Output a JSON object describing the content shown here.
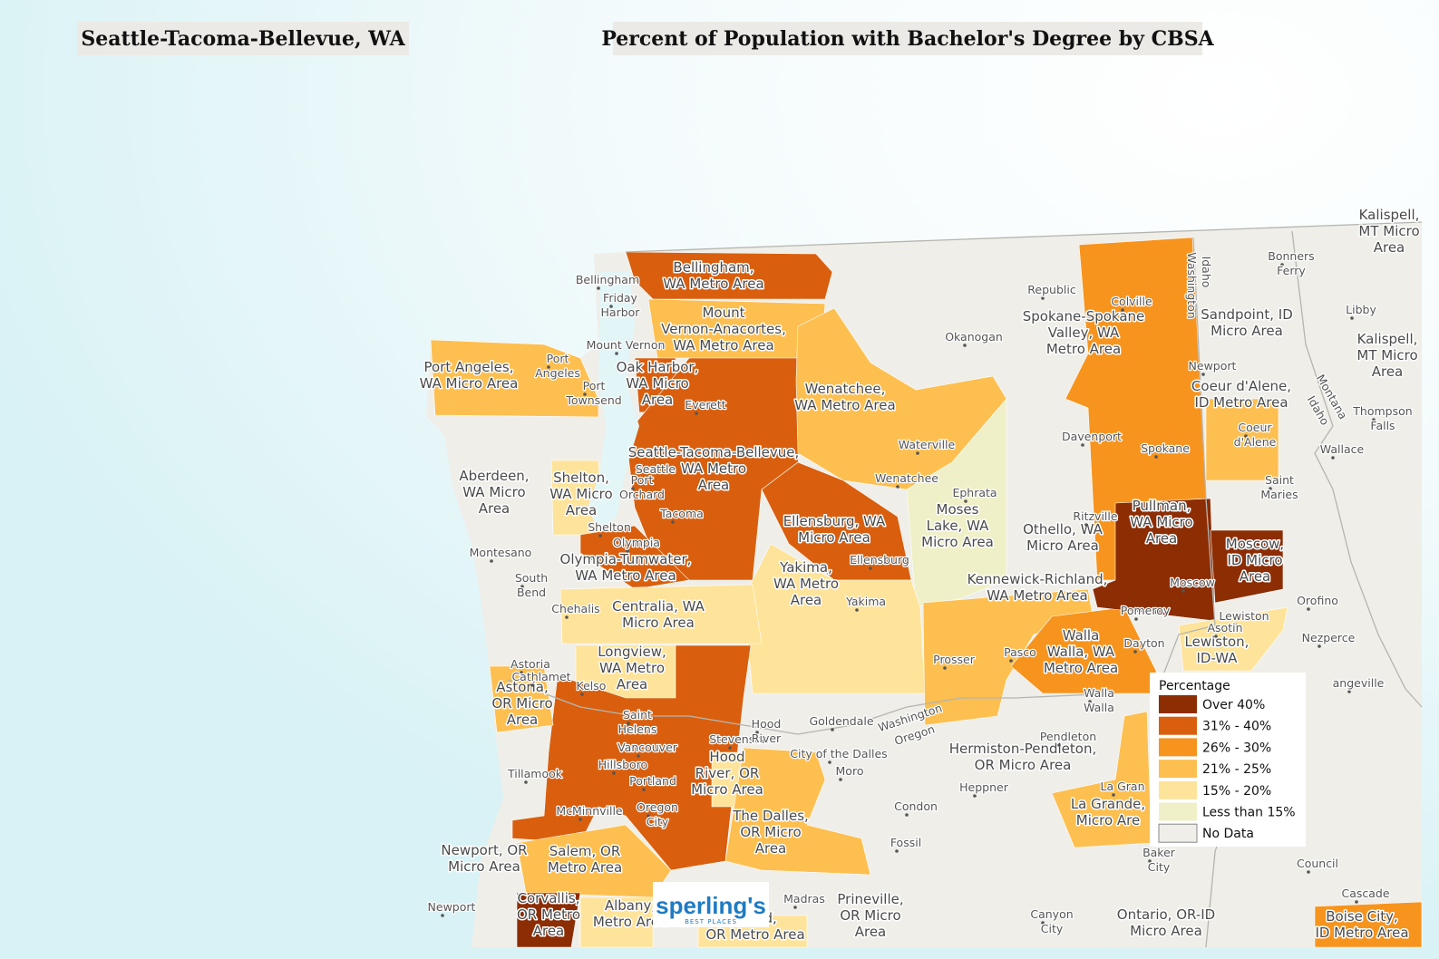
{
  "header": {
    "location": "Seattle-Tacoma-Bellevue, WA",
    "title": "Percent of Population with Bachelor's Degree by CBSA"
  },
  "legend": {
    "title": "Percentage",
    "items": [
      {
        "label": "Over 40%",
        "color": "#8c2d04"
      },
      {
        "label": "31% - 40%",
        "color": "#d95f0e"
      },
      {
        "label": "26% - 30%",
        "color": "#f7941d"
      },
      {
        "label": "21% - 25%",
        "color": "#fdbf4f"
      },
      {
        "label": "15% - 20%",
        "color": "#fee39a"
      },
      {
        "label": "Less than 15%",
        "color": "#eff0c8"
      },
      {
        "label": "No Data",
        "color": "#efeee9"
      }
    ]
  },
  "areas": [
    {
      "lines": [
        "Bellingham,",
        "WA Metro Area"
      ],
      "category": "31% - 40%"
    },
    {
      "lines": [
        "Mount",
        "Vernon-Anacortes,",
        "WA Metro Area"
      ],
      "category": "21% - 25%"
    },
    {
      "lines": [
        "Port Angeles,",
        "WA Micro Area"
      ],
      "category": "21% - 25%"
    },
    {
      "lines": [
        "Oak Harbor,",
        "WA Micro",
        "Area"
      ],
      "category": "31% - 40%"
    },
    {
      "lines": [
        "Seattle-Tacoma-Bellevue,",
        "WA Metro",
        "Area"
      ],
      "category": "31% - 40%"
    },
    {
      "lines": [
        "Wenatchee,",
        "WA Metro Area"
      ],
      "category": "21% - 25%"
    },
    {
      "lines": [
        "Moses",
        "Lake, WA",
        "Micro Area"
      ],
      "category": "Less than 15%"
    },
    {
      "lines": [
        "Ellensburg, WA",
        "Micro Area"
      ],
      "category": "31% - 40%"
    },
    {
      "lines": [
        "Yakima,",
        "WA Metro",
        "Area"
      ],
      "category": "15% - 20%"
    },
    {
      "lines": [
        "Shelton,",
        "WA Micro",
        "Area"
      ],
      "category": "15% - 20%"
    },
    {
      "lines": [
        "Olympia-Tumwater,",
        "WA Metro Area"
      ],
      "category": "31% - 40%"
    },
    {
      "lines": [
        "Centralia, WA",
        "Micro Area"
      ],
      "category": "15% - 20%"
    },
    {
      "lines": [
        "Aberdeen,",
        "WA Micro",
        "Area"
      ],
      "category": "No Data"
    },
    {
      "lines": [
        "Longview,",
        "WA Metro",
        "Area"
      ],
      "category": "15% - 20%"
    },
    {
      "category": "31% - 40%"
    },
    {
      "lines": [
        "Astoria,",
        "OR Micro",
        "Area"
      ],
      "category": "21% - 25%"
    },
    {
      "lines": [
        "Hood",
        "River, OR",
        "Micro Area"
      ],
      "category": "15% - 20%"
    },
    {
      "lines": [
        "The Dalles,",
        "OR Micro",
        "Area"
      ],
      "category": "21% - 25%"
    },
    {
      "lines": [
        "Kennewick-Richland,",
        "WA Metro Area"
      ],
      "category": "21% - 25%"
    },
    {
      "lines": [
        "Walla",
        "Walla, WA",
        "Metro Area"
      ],
      "category": "26% - 30%"
    },
    {
      "lines": [
        "Spokane-Spokane",
        "Valley, WA",
        "Metro Area"
      ],
      "category": "26% - 30%"
    },
    {
      "lines": [
        "Coeur d'Alene,",
        "ID Metro Area"
      ],
      "category": "21% - 25%"
    },
    {
      "lines": [
        "Pullman,",
        "WA Micro",
        "Area"
      ],
      "category": "Over 40%"
    },
    {
      "lines": [
        "Moscow,",
        "ID Micro",
        "Area"
      ],
      "category": "Over 40%"
    },
    {
      "lines": [
        "Lewiston,",
        "ID-WA"
      ],
      "category": "15% - 20%"
    },
    {
      "lines": [
        "Othello, WA",
        "Micro Area"
      ],
      "category": "No Data"
    },
    {
      "lines": [
        "Hermiston-Pendleton,",
        "OR Micro Area"
      ],
      "category": "No Data"
    },
    {
      "lines": [
        "La Grande,",
        "Micro Are"
      ],
      "category": "21% - 25%"
    },
    {
      "lines": [
        "Newport, OR",
        "Micro Area"
      ],
      "category": "No Data"
    },
    {
      "lines": [
        "Salem, OR",
        "Metro Area"
      ],
      "category": "21% - 25%"
    },
    {
      "lines": [
        "Corvallis,",
        "OR Metro",
        "Area"
      ],
      "category": "Over 40%"
    },
    {
      "lines": [
        "Albany,",
        "Metro Area"
      ],
      "category": "15% - 20%"
    },
    {
      "lines": [
        "Prineville,",
        "OR Micro",
        "Area"
      ],
      "category": "No Data"
    },
    {
      "lines": [
        "mond,",
        "OR Metro Area"
      ],
      "category": "15% - 20%"
    },
    {
      "lines": [
        "Ontario, OR-ID",
        "Micro Area"
      ],
      "category": "No Data"
    },
    {
      "lines": [
        "Boise City,",
        "ID Metro Area"
      ],
      "category": "26% - 30%"
    },
    {
      "lines": [
        "Kalispell,",
        "MT Micro",
        "Area"
      ],
      "category": "No Data"
    },
    {
      "lines": [
        "Kalispell,",
        "MT Micro",
        "Area"
      ],
      "category": "No Data"
    },
    {
      "lines": [
        "Sandpoint, ID",
        "Micro Area"
      ],
      "category": "No Data"
    }
  ],
  "places": [
    [
      "Bellingham"
    ],
    [
      "Friday",
      "Harbor"
    ],
    [
      "Mount Vernon"
    ],
    [
      "Port",
      "Angeles"
    ],
    [
      "Port",
      "Townsend"
    ],
    [
      "Everett"
    ],
    [
      "Seattle"
    ],
    [
      "Port",
      "Orchard"
    ],
    [
      "Tacoma"
    ],
    [
      "Shelton"
    ],
    [
      "Olympia"
    ],
    [
      "Montesano"
    ],
    [
      "South",
      "Bend"
    ],
    [
      "Chehalis"
    ],
    [
      "Astoria"
    ],
    [
      "Cathlamet"
    ],
    [
      "Kelso"
    ],
    [
      "Saint",
      "Helens"
    ],
    [
      "Vancouver"
    ],
    [
      "Hillsboro"
    ],
    [
      "Portland"
    ],
    [
      "Tillamook"
    ],
    [
      "McMinnville"
    ],
    [
      "Oregon",
      "City"
    ],
    [
      "Stevenson"
    ],
    [
      "Hood",
      "River"
    ],
    [
      "Goldendale"
    ],
    [
      "City of the Dalles"
    ],
    [
      "Moro"
    ],
    [
      "Yakima"
    ],
    [
      "Ellensburg"
    ],
    [
      "Wenatchee"
    ],
    [
      "Waterville"
    ],
    [
      "Ephrata"
    ],
    [
      "Okanogan"
    ],
    [
      "Republic"
    ],
    [
      "Colville"
    ],
    [
      "Newport"
    ],
    [
      "Spokane"
    ],
    [
      "Davenport"
    ],
    [
      "Ritzville"
    ],
    [
      "Pasco"
    ],
    [
      "Prosser"
    ],
    [
      "Dayton"
    ],
    [
      "Walla",
      "Walla"
    ],
    [
      "Pomeroy"
    ],
    [
      "Moscow"
    ],
    [
      "Lewiston"
    ],
    [
      "Asotin"
    ],
    [
      "Pendleton"
    ],
    [
      "Heppner"
    ],
    [
      "Condon"
    ],
    [
      "Fossil"
    ],
    [
      "La Gran"
    ],
    [
      "Baker",
      "City"
    ],
    [
      "Madras"
    ],
    [
      "Canyon",
      "City"
    ],
    [
      "Newport"
    ],
    [
      "Bonners",
      "Ferry"
    ],
    [
      "Libby"
    ],
    [
      "Coeur",
      "d'Alene"
    ],
    [
      "Saint",
      "Maries"
    ],
    [
      "Wallace"
    ],
    [
      "Thompson",
      "Falls"
    ],
    [
      "Orofino"
    ],
    [
      "Nezperce"
    ],
    [
      "angeville"
    ],
    [
      "Council"
    ],
    [
      "Cascade"
    ]
  ],
  "state_labels": [
    "Washington",
    "Oregon",
    "Idaho",
    "Washington",
    "Idaho",
    "Montana"
  ],
  "logo": {
    "name": "sperling's",
    "tagline": "BEST PLACES"
  }
}
